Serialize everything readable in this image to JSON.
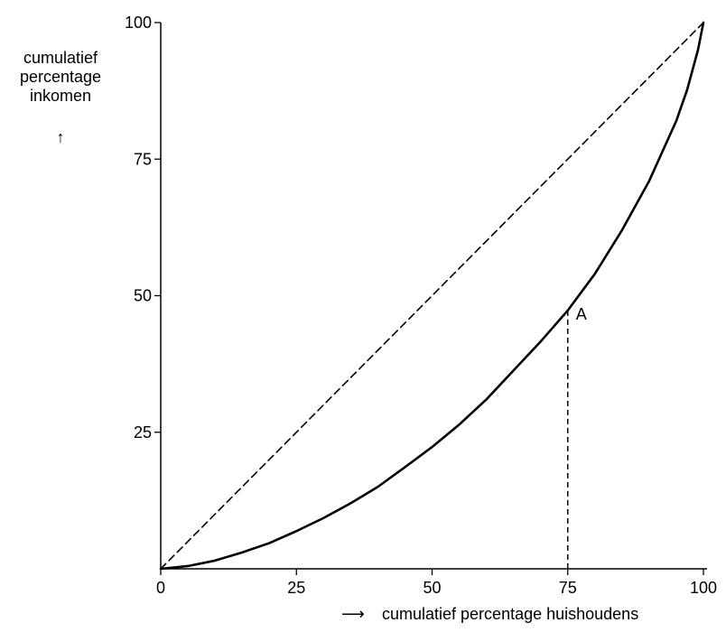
{
  "chart_data": {
    "type": "line",
    "title": "",
    "ylabel_lines": [
      "cumulatief",
      "percentage",
      "inkomen"
    ],
    "ylabel_arrow": "↑",
    "xlabel": "cumulatief percentage huishoudens",
    "xlabel_arrow": "⟶",
    "xlim": [
      0,
      100
    ],
    "ylim": [
      0,
      100
    ],
    "xticks": [
      0,
      25,
      50,
      75,
      100
    ],
    "yticks": [
      25,
      50,
      75,
      100
    ],
    "xtick_labels": [
      "0",
      "25",
      "50",
      "75",
      "100"
    ],
    "ytick_labels": [
      "25",
      "50",
      "75",
      "100"
    ],
    "grid": false,
    "series": [
      {
        "style": "dashed",
        "color": "#000000",
        "x": [
          0,
          100
        ],
        "y": [
          0,
          100
        ]
      },
      {
        "style": "solid",
        "color": "#000000",
        "x": [
          0,
          5,
          10,
          15,
          20,
          25,
          30,
          35,
          40,
          45,
          50,
          55,
          60,
          65,
          70,
          75,
          80,
          85,
          90,
          95,
          97,
          99,
          100
        ],
        "y": [
          0,
          0.5,
          1.5,
          3,
          4.7,
          6.9,
          9.3,
          12,
          15,
          18.6,
          22.3,
          26.4,
          31,
          36.3,
          41.6,
          47.3,
          54,
          62,
          71,
          82,
          87.7,
          95,
          100
        ]
      }
    ],
    "annotations": [
      {
        "label": "A",
        "x": 75,
        "y": 47.3,
        "drop_line": "dashed"
      }
    ]
  }
}
